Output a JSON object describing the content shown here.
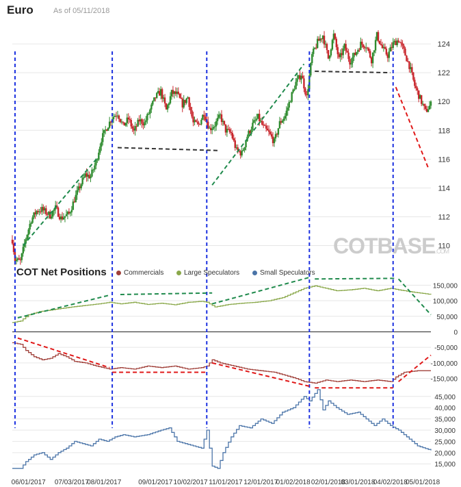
{
  "header": {
    "title": "Euro",
    "as_of": "As of 05/11/2018"
  },
  "watermark": {
    "logo": "COTBASE",
    "domain": ".COM"
  },
  "colors": {
    "up": "#2e8b2e",
    "down": "#c8252b",
    "commercials": "#a0403a",
    "large_speculators": "#8aa84a",
    "small_speculators": "#4a74a8",
    "event_line": "#1a2fe0",
    "trend_up": "#1f8a4c",
    "trend_down": "#e01818",
    "support": "#333333"
  },
  "chart_data": [
    {
      "type": "candlestick",
      "title": "Euro",
      "y_ticks": [
        110,
        112,
        114,
        116,
        118,
        120,
        122,
        124
      ],
      "ylim": [
        108.6,
        126
      ],
      "path": [
        [
          0,
          110.4
        ],
        [
          1,
          109.0
        ],
        [
          3,
          108.9
        ],
        [
          5,
          110.5
        ],
        [
          7,
          111.8
        ],
        [
          9,
          112.4
        ],
        [
          11,
          112.5
        ],
        [
          14,
          112.1
        ],
        [
          16,
          112.6
        ],
        [
          18,
          111.9
        ],
        [
          21,
          112.2
        ],
        [
          23,
          113.2
        ],
        [
          25,
          114.1
        ],
        [
          27,
          114.9
        ],
        [
          29,
          114.8
        ],
        [
          31,
          115.8
        ],
        [
          33,
          117.4
        ],
        [
          35,
          118.2
        ],
        [
          37,
          118.9
        ],
        [
          39,
          119.2
        ],
        [
          41,
          118.3
        ],
        [
          43,
          118.8
        ],
        [
          45,
          117.9
        ],
        [
          47,
          118.7
        ],
        [
          49,
          118.5
        ],
        [
          51,
          119.4
        ],
        [
          53,
          120.3
        ],
        [
          55,
          120.7
        ],
        [
          57,
          119.4
        ],
        [
          59,
          120.6
        ],
        [
          61,
          120.5
        ],
        [
          63,
          119.8
        ],
        [
          65,
          120.3
        ],
        [
          67,
          118.5
        ],
        [
          69,
          118.4
        ],
        [
          71,
          119.2
        ],
        [
          73,
          118.1
        ],
        [
          75,
          118.4
        ],
        [
          77,
          119.0
        ],
        [
          79,
          118.0
        ],
        [
          81,
          117.8
        ],
        [
          83,
          116.6
        ],
        [
          85,
          116.4
        ],
        [
          87,
          117.6
        ],
        [
          89,
          118.4
        ],
        [
          91,
          118.9
        ],
        [
          93,
          118.2
        ],
        [
          95,
          117.8
        ],
        [
          97,
          117.2
        ],
        [
          99,
          118.5
        ],
        [
          101,
          119.0
        ],
        [
          103,
          120.2
        ],
        [
          105,
          121.3
        ],
        [
          107,
          121.9
        ],
        [
          109,
          120.3
        ],
        [
          111,
          123.2
        ],
        [
          113,
          124.1
        ],
        [
          115,
          124.6
        ],
        [
          117,
          123.0
        ],
        [
          119,
          124.6
        ],
        [
          121,
          122.9
        ],
        [
          123,
          123.8
        ],
        [
          125,
          122.8
        ],
        [
          127,
          123.3
        ],
        [
          129,
          124.0
        ],
        [
          131,
          123.9
        ],
        [
          133,
          122.9
        ],
        [
          135,
          124.6
        ],
        [
          137,
          123.7
        ],
        [
          139,
          123.2
        ],
        [
          141,
          124.0
        ],
        [
          143,
          124.3
        ],
        [
          145,
          123.5
        ],
        [
          147,
          122.5
        ],
        [
          149,
          121.1
        ],
        [
          151,
          120.2
        ],
        [
          153,
          119.3
        ],
        [
          155,
          119.8
        ]
      ],
      "events": [
        1,
        37,
        72,
        110,
        141
      ],
      "trendlines": [
        {
          "kind": "up",
          "from": [
            4,
            110.0
          ],
          "to": [
            32,
            116.2
          ]
        },
        {
          "kind": "support",
          "from": [
            39,
            116.8
          ],
          "to": [
            76,
            116.6
          ]
        },
        {
          "kind": "up",
          "from": [
            74,
            114.2
          ],
          "to": [
            108,
            122.6
          ]
        },
        {
          "kind": "support",
          "from": [
            112,
            122.1
          ],
          "to": [
            140,
            122.0
          ]
        },
        {
          "kind": "down",
          "from": [
            142,
            121.0
          ],
          "to": [
            154,
            115.4
          ]
        }
      ]
    },
    {
      "type": "line",
      "title": "COT Net Positions",
      "y_ticks": [
        150000,
        100000,
        50000,
        0,
        -50000,
        -100000,
        -150000
      ],
      "tick_labels": [
        "150,000",
        "100,000",
        "50,000",
        "0",
        "-50,000",
        "-100,000",
        "-150,000"
      ],
      "ylim": [
        -195000,
        175000
      ],
      "series": [
        {
          "name": "Commercials",
          "points": [
            [
              0,
              -35000
            ],
            [
              3,
              -40000
            ],
            [
              5,
              -60000
            ],
            [
              8,
              -80000
            ],
            [
              11,
              -90000
            ],
            [
              14,
              -85000
            ],
            [
              17,
              -70000
            ],
            [
              20,
              -80000
            ],
            [
              23,
              -95000
            ],
            [
              27,
              -100000
            ],
            [
              31,
              -110000
            ],
            [
              36,
              -120000
            ],
            [
              40,
              -115000
            ],
            [
              45,
              -120000
            ],
            [
              50,
              -110000
            ],
            [
              55,
              -115000
            ],
            [
              60,
              -110000
            ],
            [
              65,
              -120000
            ],
            [
              70,
              -115000
            ],
            [
              72,
              -110000
            ],
            [
              74,
              -90000
            ],
            [
              77,
              -100000
            ],
            [
              82,
              -110000
            ],
            [
              87,
              -120000
            ],
            [
              92,
              -125000
            ],
            [
              97,
              -130000
            ],
            [
              101,
              -140000
            ],
            [
              105,
              -150000
            ],
            [
              108,
              -160000
            ],
            [
              112,
              -165000
            ],
            [
              116,
              -155000
            ],
            [
              120,
              -160000
            ],
            [
              125,
              -155000
            ],
            [
              130,
              -160000
            ],
            [
              135,
              -155000
            ],
            [
              140,
              -160000
            ],
            [
              142,
              -145000
            ],
            [
              145,
              -130000
            ],
            [
              150,
              -125000
            ],
            [
              155,
              -125000
            ]
          ]
        },
        {
          "name": "Large Speculators",
          "points": [
            [
              0,
              30000
            ],
            [
              3,
              35000
            ],
            [
              6,
              55000
            ],
            [
              10,
              65000
            ],
            [
              14,
              70000
            ],
            [
              18,
              75000
            ],
            [
              22,
              80000
            ],
            [
              27,
              85000
            ],
            [
              32,
              90000
            ],
            [
              36,
              95000
            ],
            [
              40,
              90000
            ],
            [
              45,
              95000
            ],
            [
              50,
              88000
            ],
            [
              55,
              92000
            ],
            [
              60,
              87000
            ],
            [
              65,
              95000
            ],
            [
              70,
              98000
            ],
            [
              72,
              95000
            ],
            [
              75,
              80000
            ],
            [
              80,
              88000
            ],
            [
              85,
              92000
            ],
            [
              90,
              95000
            ],
            [
              95,
              100000
            ],
            [
              100,
              110000
            ],
            [
              104,
              125000
            ],
            [
              108,
              140000
            ],
            [
              112,
              148000
            ],
            [
              116,
              140000
            ],
            [
              120,
              132000
            ],
            [
              125,
              135000
            ],
            [
              130,
              140000
            ],
            [
              135,
              132000
            ],
            [
              140,
              140000
            ],
            [
              143,
              135000
            ],
            [
              148,
              128000
            ],
            [
              155,
              120000
            ]
          ]
        }
      ]
    },
    {
      "type": "line",
      "title": "Small Speculators",
      "y_ticks": [
        15000,
        20000,
        25000,
        30000,
        35000,
        40000,
        45000
      ],
      "tick_labels": [
        "15,000",
        "20,000",
        "25,000",
        "30,000",
        "35,000",
        "40,000",
        "45,000"
      ],
      "ylim": [
        10500,
        49500
      ],
      "x_ticks": [
        {
          "x": 6,
          "label": "06/01/2017"
        },
        {
          "x": 22,
          "label": "07/03/2017"
        },
        {
          "x": 34,
          "label": "08/01/2017"
        },
        {
          "x": 53,
          "label": "09/01/2017"
        },
        {
          "x": 66,
          "label": "10/02/2017"
        },
        {
          "x": 79,
          "label": "11/01/2017"
        },
        {
          "x": 92,
          "label": "12/01/2017"
        },
        {
          "x": 104,
          "label": "01/02/2018"
        },
        {
          "x": 117,
          "label": "02/01/2018"
        },
        {
          "x": 128,
          "label": "03/01/2018"
        },
        {
          "x": 140,
          "label": "04/02/2018"
        },
        {
          "x": 152,
          "label": "05/01/2018"
        }
      ],
      "series": [
        {
          "name": "Small Speculators",
          "points": [
            [
              0,
              13000
            ],
            [
              3,
              13000
            ],
            [
              5,
              16000
            ],
            [
              8,
              19000
            ],
            [
              11,
              20000
            ],
            [
              14,
              17000
            ],
            [
              17,
              20000
            ],
            [
              20,
              22000
            ],
            [
              23,
              25000
            ],
            [
              26,
              24000
            ],
            [
              29,
              23000
            ],
            [
              32,
              26000
            ],
            [
              35,
              25000
            ],
            [
              38,
              27000
            ],
            [
              41,
              28000
            ],
            [
              45,
              27000
            ],
            [
              50,
              28000
            ],
            [
              55,
              30000
            ],
            [
              58,
              31000
            ],
            [
              61,
              25000
            ],
            [
              64,
              24000
            ],
            [
              67,
              23000
            ],
            [
              70,
              22000
            ],
            [
              72,
              30000
            ],
            [
              74,
              14000
            ],
            [
              76,
              13000
            ],
            [
              78,
              20000
            ],
            [
              81,
              27000
            ],
            [
              84,
              32000
            ],
            [
              88,
              31000
            ],
            [
              92,
              35000
            ],
            [
              96,
              33000
            ],
            [
              100,
              38000
            ],
            [
              104,
              40000
            ],
            [
              108,
              45000
            ],
            [
              110,
              43000
            ],
            [
              113,
              48000
            ],
            [
              115,
              39000
            ],
            [
              117,
              43000
            ],
            [
              120,
              40000
            ],
            [
              124,
              37000
            ],
            [
              128,
              38000
            ],
            [
              131,
              35000
            ],
            [
              134,
              32000
            ],
            [
              137,
              35000
            ],
            [
              140,
              32000
            ],
            [
              143,
              30000
            ],
            [
              147,
              26000
            ],
            [
              150,
              23000
            ],
            [
              155,
              21000
            ]
          ]
        }
      ]
    }
  ],
  "cot_title": "COT Net Positions",
  "legend": [
    {
      "label": "Commercials",
      "color": "#a0403a"
    },
    {
      "label": "Large Speculators",
      "color": "#8aa84a"
    },
    {
      "label": "Small Speculators",
      "color": "#4a74a8"
    }
  ]
}
